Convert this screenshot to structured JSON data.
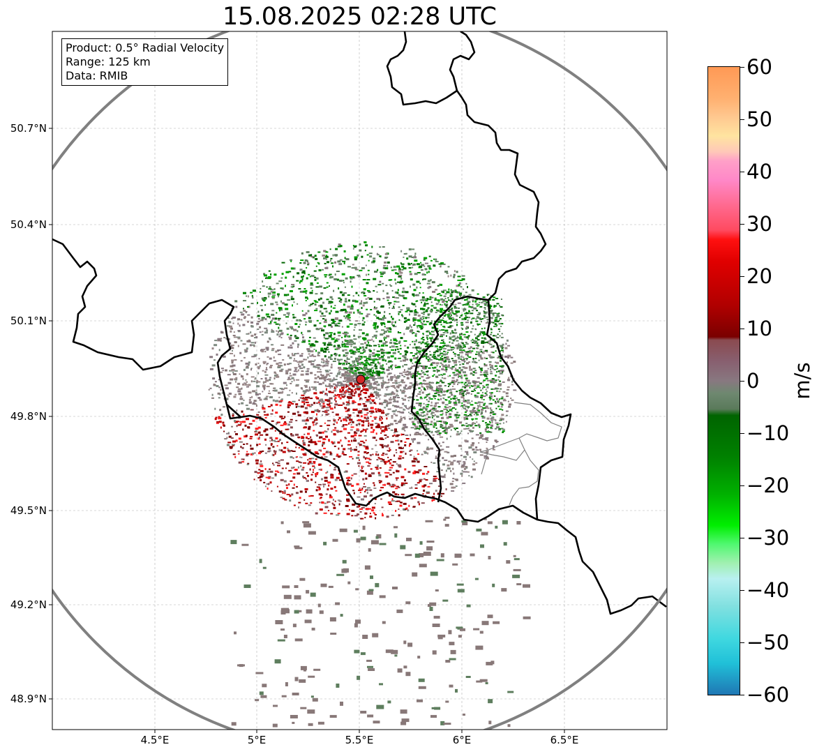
{
  "title": "15.08.2025 02:28 UTC",
  "info_box": {
    "product": "Product: 0.5° Radial Velocity",
    "range": "Range: 125 km",
    "source": "Data: RMIB"
  },
  "lat_labels": [
    "50.7°N",
    "50.4°N",
    "50.1°N",
    "49.8°N",
    "49.5°N",
    "49.2°N",
    "48.9°N"
  ],
  "lon_labels": [
    "4.5°E",
    "5°E",
    "5.5°E",
    "6°E",
    "6.5°E"
  ],
  "colorbar": {
    "unit": "m/s",
    "tick_labels": [
      "60",
      "50",
      "40",
      "30",
      "20",
      "10",
      "0",
      "−10",
      "−20",
      "−30",
      "−40",
      "−50",
      "−60"
    ]
  },
  "map": {
    "lon_range": [
      4.0,
      7.0
    ],
    "lat_range": [
      48.8,
      51.0
    ],
    "radar_site": {
      "lon": 5.505,
      "lat": 49.914
    },
    "range_ring_km": 125,
    "colors": {
      "border": "#000000",
      "subregion": "#808080",
      "range_ring": "#808080",
      "radar_marker": "#d62728",
      "grid": "#b0b0b0"
    }
  }
}
